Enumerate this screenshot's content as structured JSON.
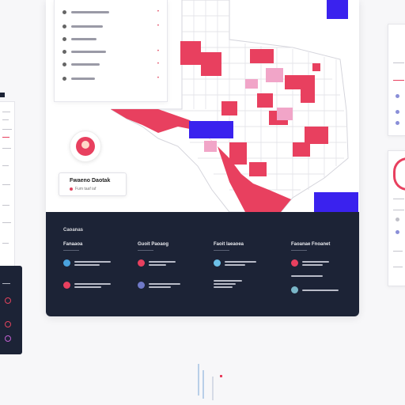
{
  "theme": {
    "accent": "#e8405f",
    "accent_light": "#f1a5c8",
    "highlight": "#3a22ee",
    "dark": "#1c2336",
    "map_base": "#ffffff",
    "map_border": "#d5d5dc"
  },
  "list_panel": {
    "rows": [
      "row-1",
      "row-2",
      "row-3",
      "row-4",
      "row-5",
      "row-6"
    ]
  },
  "profile": {
    "title": "Fwaeno Daotak",
    "subtitle": "Fum taaf iaf"
  },
  "footer": {
    "title": "Caoanas",
    "columns": [
      {
        "heading": "Fanaaoa"
      },
      {
        "heading": "Guoit Paoaog"
      },
      {
        "heading": "Faoit laeaoea"
      },
      {
        "heading": "Faoanae Fnoanet"
      }
    ]
  }
}
